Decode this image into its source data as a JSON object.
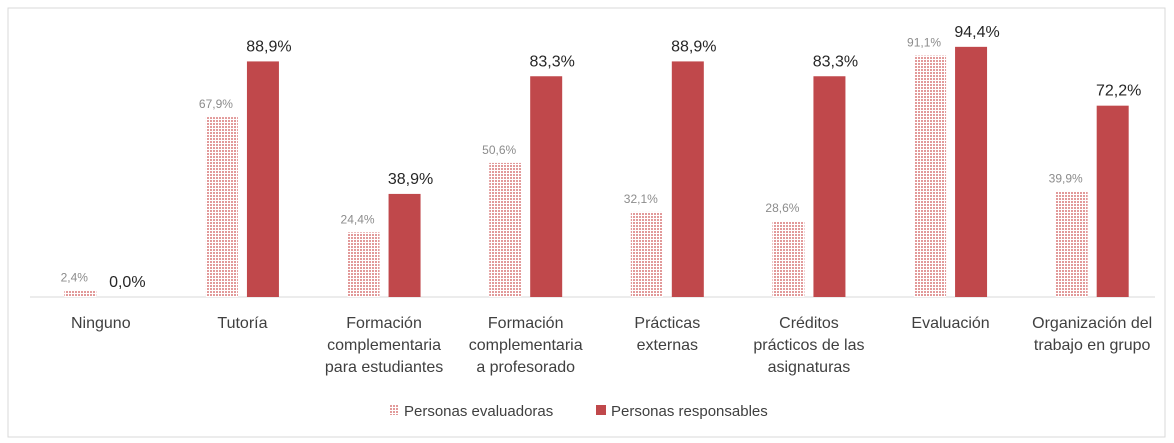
{
  "chart_data": {
    "type": "bar",
    "categories": [
      "Ninguno",
      "Tutoría",
      "Formación\ncomplementaria\npara estudiantes",
      "Formación\ncomplementaria\na profesorado",
      "Prácticas\nexternas",
      "Créditos\nprácticos de las\nasignaturas",
      "Evaluación",
      "Organización del\ntrabajo en grupo"
    ],
    "series": [
      {
        "name": "Personas evaluadoras",
        "color": "#e8a0a0",
        "values": [
          2.4,
          67.9,
          24.4,
          50.6,
          32.1,
          28.6,
          91.1,
          39.9
        ],
        "value_labels": [
          "2,4%",
          "67,9%",
          "24,4%",
          "50,6%",
          "32,1%",
          "28,6%",
          "91,1%",
          "39,9%"
        ]
      },
      {
        "name": "Personas responsables",
        "color": "#c0484b",
        "values": [
          0.0,
          88.9,
          38.9,
          83.3,
          88.9,
          83.3,
          94.4,
          72.2
        ],
        "value_labels": [
          "0,0%",
          "88,9%",
          "38,9%",
          "83,3%",
          "88,9%",
          "83,3%",
          "94,4%",
          "72,2%"
        ]
      }
    ],
    "ylim": [
      0,
      100
    ],
    "legend": "bottom"
  }
}
